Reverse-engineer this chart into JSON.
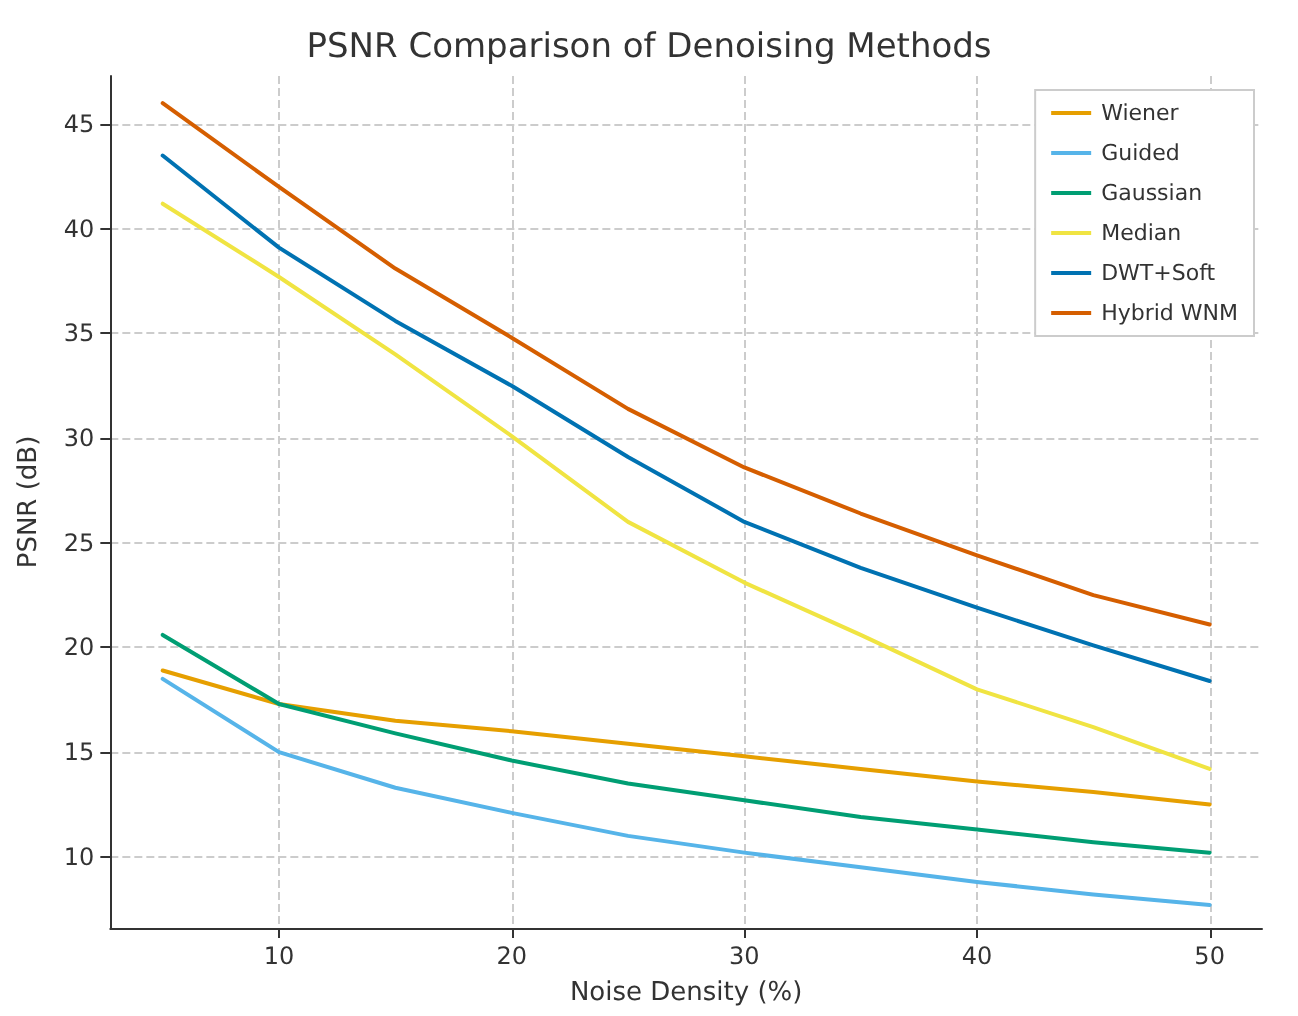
{
  "chart_data": {
    "type": "line",
    "title": "PSNR Comparison of Denoising Methods",
    "xlabel": "Noise Density (%)",
    "ylabel": "PSNR (dB)",
    "x": [
      5,
      10,
      15,
      20,
      25,
      30,
      35,
      40,
      45,
      50
    ],
    "series": [
      {
        "name": "Wiener",
        "color": "#e69f00",
        "values": [
          18.9,
          17.3,
          16.5,
          16.0,
          15.4,
          14.8,
          14.2,
          13.6,
          13.1,
          12.5
        ]
      },
      {
        "name": "Guided",
        "color": "#56b4e9",
        "values": [
          18.5,
          15.0,
          13.3,
          12.1,
          11.0,
          10.2,
          9.5,
          8.8,
          8.2,
          7.7
        ]
      },
      {
        "name": "Gaussian",
        "color": "#009e73",
        "values": [
          20.6,
          17.3,
          15.9,
          14.6,
          13.5,
          12.7,
          11.9,
          11.3,
          10.7,
          10.2
        ]
      },
      {
        "name": "Median",
        "color": "#f0e442",
        "values": [
          41.2,
          37.7,
          34.0,
          30.1,
          26.0,
          23.1,
          20.6,
          18.0,
          16.2,
          14.2
        ]
      },
      {
        "name": "DWT+Soft",
        "color": "#0072b2",
        "values": [
          43.5,
          39.1,
          35.6,
          32.5,
          29.1,
          26.0,
          23.8,
          21.9,
          20.1,
          18.4
        ]
      },
      {
        "name": "Hybrid WNM",
        "color": "#d55e00",
        "values": [
          46.0,
          42.0,
          38.1,
          34.8,
          31.4,
          28.6,
          26.4,
          24.4,
          22.5,
          21.1
        ]
      }
    ],
    "xlim": [
      2.75,
      52.25
    ],
    "xticks": [
      10,
      20,
      30,
      40,
      50
    ],
    "ylim": [
      6.6,
      47.3
    ],
    "yticks": [
      10,
      15,
      20,
      25,
      30,
      35,
      40,
      45
    ],
    "grid": true,
    "legend": "top right",
    "marker": "none",
    "line_style": "solid"
  }
}
